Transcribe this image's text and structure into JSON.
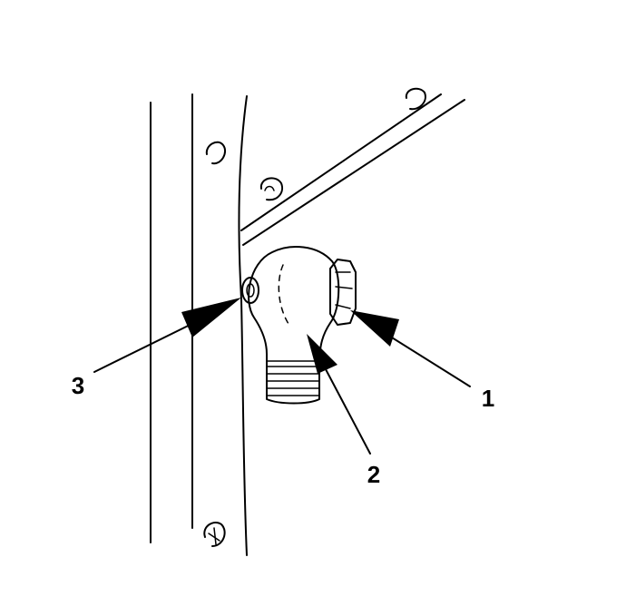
{
  "callouts": [
    {
      "id": "1",
      "label": "1"
    },
    {
      "id": "2",
      "label": "2"
    },
    {
      "id": "3",
      "label": "3"
    }
  ],
  "colors": {
    "ink": "#000000",
    "paper": "#ffffff"
  }
}
